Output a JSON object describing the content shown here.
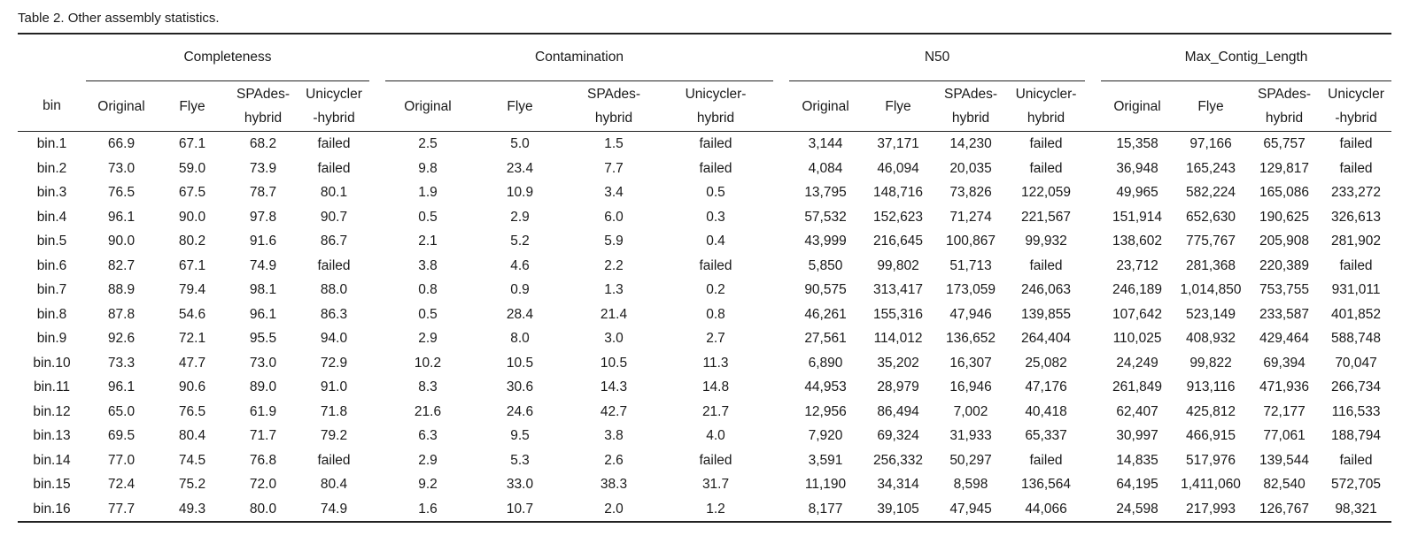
{
  "caption": "Table 2. Other assembly statistics.",
  "headers": {
    "bin": "bin",
    "groups": [
      "Completeness",
      "Contamination",
      "N50",
      "Max_Contig_Length"
    ],
    "completeness": [
      [
        "Original"
      ],
      [
        "Flye"
      ],
      [
        "SPAdes-",
        "hybrid"
      ],
      [
        "Unicycler",
        "-hybrid"
      ]
    ],
    "contamination": [
      [
        "Original"
      ],
      [
        "Flye"
      ],
      [
        "SPAdes-",
        "hybrid"
      ],
      [
        "Unicycler-",
        "hybrid"
      ]
    ],
    "n50": [
      [
        "Original"
      ],
      [
        "Flye"
      ],
      [
        "SPAdes-",
        "hybrid"
      ],
      [
        "Unicycler-",
        "hybrid"
      ]
    ],
    "maxcontig": [
      [
        "Original"
      ],
      [
        "Flye"
      ],
      [
        "SPAdes-",
        "hybrid"
      ],
      [
        "Unicycler",
        "-hybrid"
      ]
    ]
  },
  "rows": [
    [
      "bin.1",
      "66.9",
      "67.1",
      "68.2",
      "failed",
      "2.5",
      "5.0",
      "1.5",
      "failed",
      "3,144",
      "37,171",
      "14,230",
      "failed",
      "15,358",
      "97,166",
      "65,757",
      "failed"
    ],
    [
      "bin.2",
      "73.0",
      "59.0",
      "73.9",
      "failed",
      "9.8",
      "23.4",
      "7.7",
      "failed",
      "4,084",
      "46,094",
      "20,035",
      "failed",
      "36,948",
      "165,243",
      "129,817",
      "failed"
    ],
    [
      "bin.3",
      "76.5",
      "67.5",
      "78.7",
      "80.1",
      "1.9",
      "10.9",
      "3.4",
      "0.5",
      "13,795",
      "148,716",
      "73,826",
      "122,059",
      "49,965",
      "582,224",
      "165,086",
      "233,272"
    ],
    [
      "bin.4",
      "96.1",
      "90.0",
      "97.8",
      "90.7",
      "0.5",
      "2.9",
      "6.0",
      "0.3",
      "57,532",
      "152,623",
      "71,274",
      "221,567",
      "151,914",
      "652,630",
      "190,625",
      "326,613"
    ],
    [
      "bin.5",
      "90.0",
      "80.2",
      "91.6",
      "86.7",
      "2.1",
      "5.2",
      "5.9",
      "0.4",
      "43,999",
      "216,645",
      "100,867",
      "99,932",
      "138,602",
      "775,767",
      "205,908",
      "281,902"
    ],
    [
      "bin.6",
      "82.7",
      "67.1",
      "74.9",
      "failed",
      "3.8",
      "4.6",
      "2.2",
      "failed",
      "5,850",
      "99,802",
      "51,713",
      "failed",
      "23,712",
      "281,368",
      "220,389",
      "failed"
    ],
    [
      "bin.7",
      "88.9",
      "79.4",
      "98.1",
      "88.0",
      "0.8",
      "0.9",
      "1.3",
      "0.2",
      "90,575",
      "313,417",
      "173,059",
      "246,063",
      "246,189",
      "1,014,850",
      "753,755",
      "931,011"
    ],
    [
      "bin.8",
      "87.8",
      "54.6",
      "96.1",
      "86.3",
      "0.5",
      "28.4",
      "21.4",
      "0.8",
      "46,261",
      "155,316",
      "47,946",
      "139,855",
      "107,642",
      "523,149",
      "233,587",
      "401,852"
    ],
    [
      "bin.9",
      "92.6",
      "72.1",
      "95.5",
      "94.0",
      "2.9",
      "8.0",
      "3.0",
      "2.7",
      "27,561",
      "114,012",
      "136,652",
      "264,404",
      "110,025",
      "408,932",
      "429,464",
      "588,748"
    ],
    [
      "bin.10",
      "73.3",
      "47.7",
      "73.0",
      "72.9",
      "10.2",
      "10.5",
      "10.5",
      "11.3",
      "6,890",
      "35,202",
      "16,307",
      "25,082",
      "24,249",
      "99,822",
      "69,394",
      "70,047"
    ],
    [
      "bin.11",
      "96.1",
      "90.6",
      "89.0",
      "91.0",
      "8.3",
      "30.6",
      "14.3",
      "14.8",
      "44,953",
      "28,979",
      "16,946",
      "47,176",
      "261,849",
      "913,116",
      "471,936",
      "266,734"
    ],
    [
      "bin.12",
      "65.0",
      "76.5",
      "61.9",
      "71.8",
      "21.6",
      "24.6",
      "42.7",
      "21.7",
      "12,956",
      "86,494",
      "7,002",
      "40,418",
      "62,407",
      "425,812",
      "72,177",
      "116,533"
    ],
    [
      "bin.13",
      "69.5",
      "80.4",
      "71.7",
      "79.2",
      "6.3",
      "9.5",
      "3.8",
      "4.0",
      "7,920",
      "69,324",
      "31,933",
      "65,337",
      "30,997",
      "466,915",
      "77,061",
      "188,794"
    ],
    [
      "bin.14",
      "77.0",
      "74.5",
      "76.8",
      "failed",
      "2.9",
      "5.3",
      "2.6",
      "failed",
      "3,591",
      "256,332",
      "50,297",
      "failed",
      "14,835",
      "517,976",
      "139,544",
      "failed"
    ],
    [
      "bin.15",
      "72.4",
      "75.2",
      "72.0",
      "80.4",
      "9.2",
      "33.0",
      "38.3",
      "31.7",
      "11,190",
      "34,314",
      "8,598",
      "136,564",
      "64,195",
      "1,411,060",
      "82,540",
      "572,705"
    ],
    [
      "bin.16",
      "77.7",
      "49.3",
      "80.0",
      "74.9",
      "1.6",
      "10.7",
      "2.0",
      "1.2",
      "8,177",
      "39,105",
      "47,945",
      "44,066",
      "24,598",
      "217,993",
      "126,767",
      "98,321"
    ]
  ]
}
